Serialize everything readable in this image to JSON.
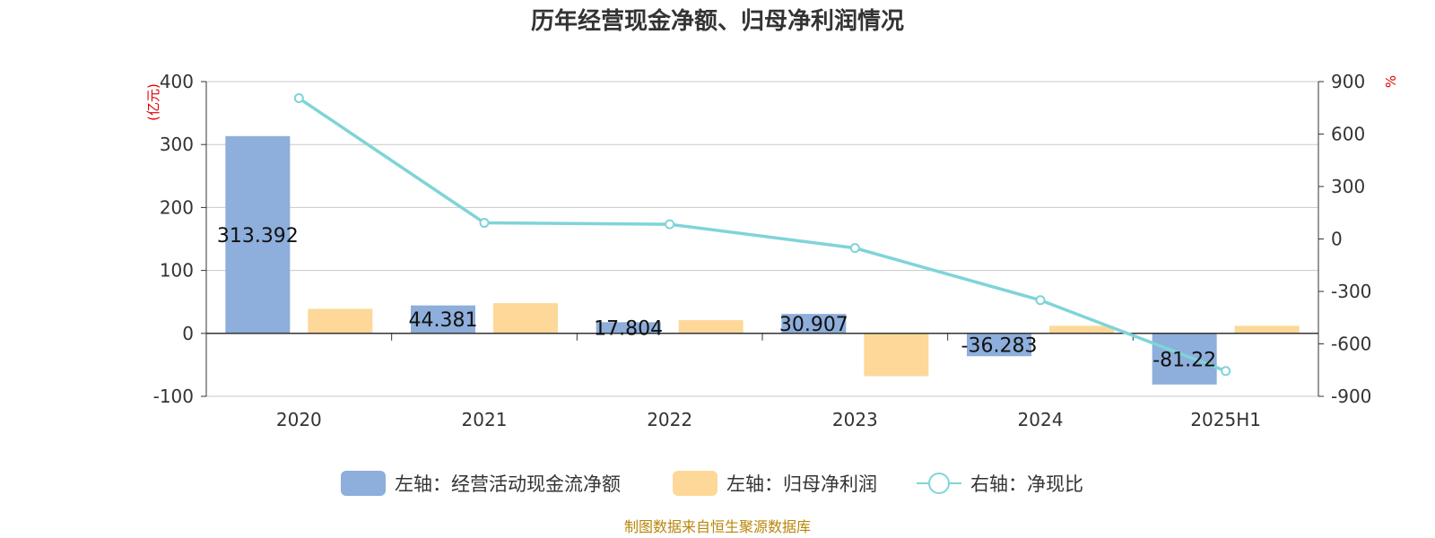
{
  "chart_data": {
    "type": "bar",
    "title": "历年经营现金净额、归母净利润情况",
    "categories": [
      "2020",
      "2021",
      "2022",
      "2023",
      "2024",
      "2025H1"
    ],
    "series": [
      {
        "name": "左轴：经营活动现金流净额",
        "axis": "left",
        "kind": "bar",
        "color": "#8eaedb",
        "values": [
          313.392,
          44.381,
          17.804,
          30.907,
          -36.283,
          -81.22
        ],
        "labels": [
          "313.392",
          "44.381",
          "17.804",
          "30.907",
          "-36.283",
          "-81.22"
        ]
      },
      {
        "name": "左轴：归母净利润",
        "axis": "left",
        "kind": "bar",
        "color": "#fdd898",
        "values": [
          39,
          48,
          21,
          -68,
          12,
          12
        ]
      },
      {
        "name": "右轴：净现比",
        "axis": "right",
        "kind": "line",
        "color": "#7fd4d8",
        "values": [
          805,
          92,
          84,
          -52,
          -350,
          -755
        ]
      }
    ],
    "left_axis": {
      "unit": "(亿元)",
      "ylim": [
        -100,
        400
      ],
      "ticks": [
        "400",
        "300",
        "200",
        "100",
        "0",
        "-100"
      ]
    },
    "right_axis": {
      "unit": "%",
      "ylim": [
        -900,
        900
      ],
      "ticks": [
        "900",
        "600",
        "300",
        "0",
        "-300",
        "-600",
        "-900"
      ]
    },
    "grid": true,
    "legend_position": "bottom"
  },
  "source": "制图数据来自恒生聚源数据库"
}
